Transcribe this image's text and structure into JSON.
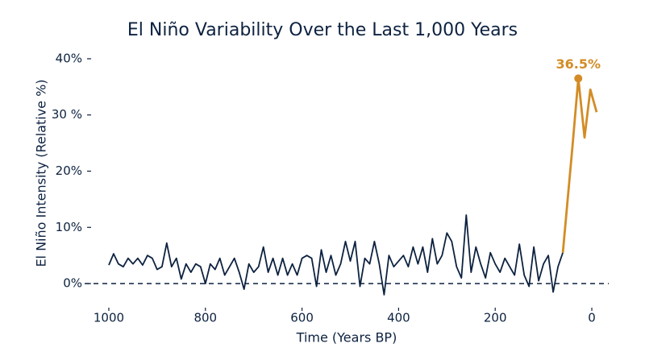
{
  "chart_data": {
    "type": "line",
    "title": "El Niño Variability Over the Last 1,000 Years",
    "xlabel": "Time (Years BP)",
    "ylabel": "El Niño Intensity (Relative %)",
    "xlim": [
      1050,
      -35
    ],
    "xticks": [
      1000,
      800,
      600,
      400,
      200,
      0
    ],
    "ylim": [
      -4,
      42
    ],
    "yticks": [
      {
        "value": 0,
        "label": "0%"
      },
      {
        "value": 10,
        "label": "10%"
      },
      {
        "value": 20,
        "label": "20%"
      },
      {
        "value": 30,
        "label": "30 %"
      },
      {
        "value": 40,
        "label": "40%"
      }
    ],
    "reference_line": 0,
    "series": [
      {
        "color": "#0d2240",
        "x": [
          1000,
          990,
          980,
          970,
          960,
          950,
          940,
          930,
          920,
          910,
          900,
          890,
          880,
          870,
          860,
          850,
          840,
          830,
          820,
          810,
          800,
          790,
          780,
          770,
          760,
          750,
          740,
          730,
          720,
          710,
          700,
          690,
          680,
          670,
          660,
          650,
          640,
          630,
          620,
          610,
          600,
          590,
          580,
          570,
          560,
          550,
          540,
          530,
          520,
          510,
          500,
          490,
          480,
          470,
          460,
          450,
          440,
          430,
          420,
          410,
          400,
          390,
          380,
          370,
          360,
          350,
          340,
          330,
          320,
          310,
          300,
          290,
          280,
          270,
          260,
          250,
          240,
          230,
          220,
          210,
          200,
          190,
          180,
          170,
          160,
          150,
          140,
          130,
          120,
          110,
          100,
          90,
          80,
          70,
          60
        ],
        "values": [
          3.3,
          5.3,
          3.5,
          3,
          4.5,
          3.5,
          4.5,
          3.3,
          5,
          4.5,
          2.5,
          3,
          7.2,
          3,
          4.5,
          0.8,
          3.5,
          2,
          3.5,
          3,
          0,
          3.5,
          2.5,
          4.5,
          1.5,
          3,
          4.5,
          2,
          -1,
          3.5,
          2,
          3,
          6.5,
          2,
          4.5,
          1.5,
          4.5,
          1.5,
          3.5,
          1.5,
          4.5,
          5,
          4.5,
          -0.5,
          6,
          2,
          5,
          1.5,
          3.5,
          7.5,
          4,
          7.5,
          -0.5,
          4.5,
          3.5,
          7.5,
          3.5,
          -2,
          5,
          3,
          4,
          5,
          3,
          6.5,
          3.5,
          6.5,
          2,
          8,
          3.5,
          5,
          9,
          7.5,
          3,
          1,
          12.2,
          2,
          6.5,
          3.5,
          1,
          5.5,
          3.5,
          2,
          4.5,
          3,
          1.5,
          7,
          1.5,
          -0.5,
          6.5,
          0.5,
          3.5,
          5,
          -1.5,
          3,
          5.5
        ]
      },
      {
        "color": "#d38c25",
        "x": [
          60,
          40,
          28,
          15,
          3,
          -10
        ],
        "values": [
          5.5,
          24.5,
          36.5,
          26,
          34.5,
          30.5
        ]
      }
    ],
    "annotation": {
      "x": 28,
      "y": 36.5,
      "label": "36.5%",
      "color": "#d38c25"
    }
  }
}
